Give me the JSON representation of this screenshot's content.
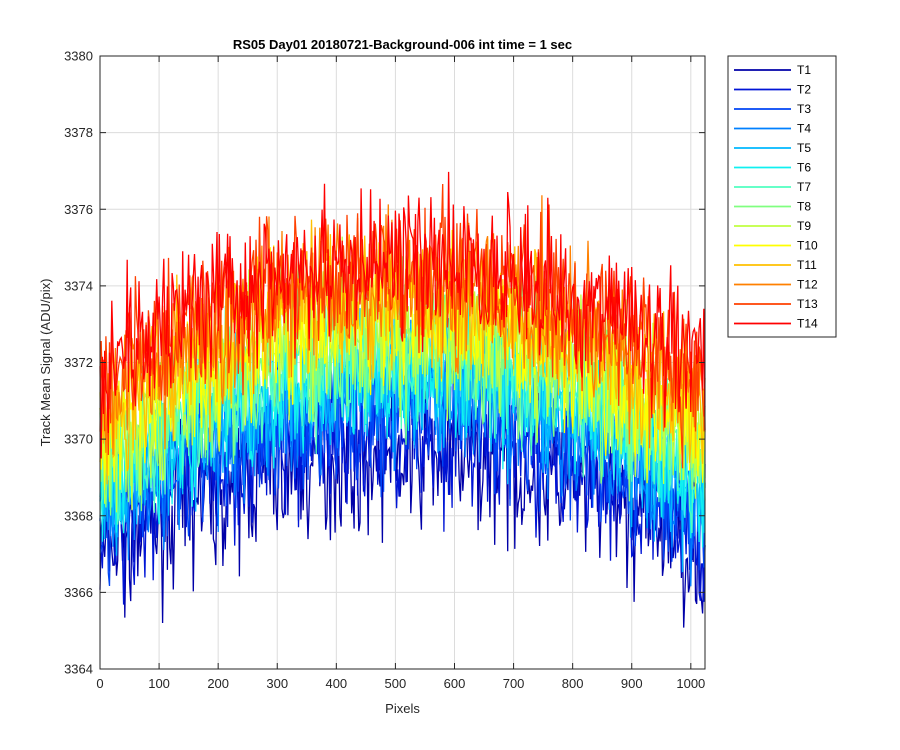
{
  "chart_data": {
    "type": "line",
    "title": "RS05 Day01 20180721-Background-006 int time = 1 sec",
    "xlabel": "Pixels",
    "ylabel": "Track Mean Signal (ADU/pix)",
    "xlim": [
      0,
      1024
    ],
    "ylim": [
      3364,
      3380
    ],
    "xticks": [
      0,
      100,
      200,
      300,
      400,
      500,
      600,
      700,
      800,
      900,
      1000
    ],
    "yticks": [
      3364,
      3366,
      3368,
      3370,
      3372,
      3374,
      3376,
      3378,
      3380
    ],
    "grid": true,
    "legend_position": "outside-right-top",
    "noise_amplitude": 2.4,
    "series": [
      {
        "name": "T1",
        "color": "#0000a8",
        "center_value": 3369.6,
        "edge_value": 3367.0
      },
      {
        "name": "T2",
        "color": "#0015d6",
        "center_value": 3370.2,
        "edge_value": 3367.4
      },
      {
        "name": "T3",
        "color": "#0045f5",
        "center_value": 3370.8,
        "edge_value": 3367.8
      },
      {
        "name": "T4",
        "color": "#0080ff",
        "center_value": 3371.3,
        "edge_value": 3368.2
      },
      {
        "name": "T5",
        "color": "#00b8ff",
        "center_value": 3371.7,
        "edge_value": 3368.6
      },
      {
        "name": "T6",
        "color": "#10f0f0",
        "center_value": 3372.0,
        "edge_value": 3368.9
      },
      {
        "name": "T7",
        "color": "#50ffc0",
        "center_value": 3372.3,
        "edge_value": 3369.2
      },
      {
        "name": "T8",
        "color": "#80ff80",
        "center_value": 3372.6,
        "edge_value": 3369.5
      },
      {
        "name": "T9",
        "color": "#c0ff40",
        "center_value": 3372.9,
        "edge_value": 3369.8
      },
      {
        "name": "T10",
        "color": "#ffff00",
        "center_value": 3373.3,
        "edge_value": 3370.2
      },
      {
        "name": "T11",
        "color": "#ffc000",
        "center_value": 3373.7,
        "edge_value": 3370.6
      },
      {
        "name": "T12",
        "color": "#ff8000",
        "center_value": 3374.1,
        "edge_value": 3371.0
      },
      {
        "name": "T13",
        "color": "#ff4000",
        "center_value": 3374.5,
        "edge_value": 3371.4
      },
      {
        "name": "T14",
        "color": "#ff0000",
        "center_value": 3374.6,
        "edge_value": 3372.0
      }
    ]
  }
}
